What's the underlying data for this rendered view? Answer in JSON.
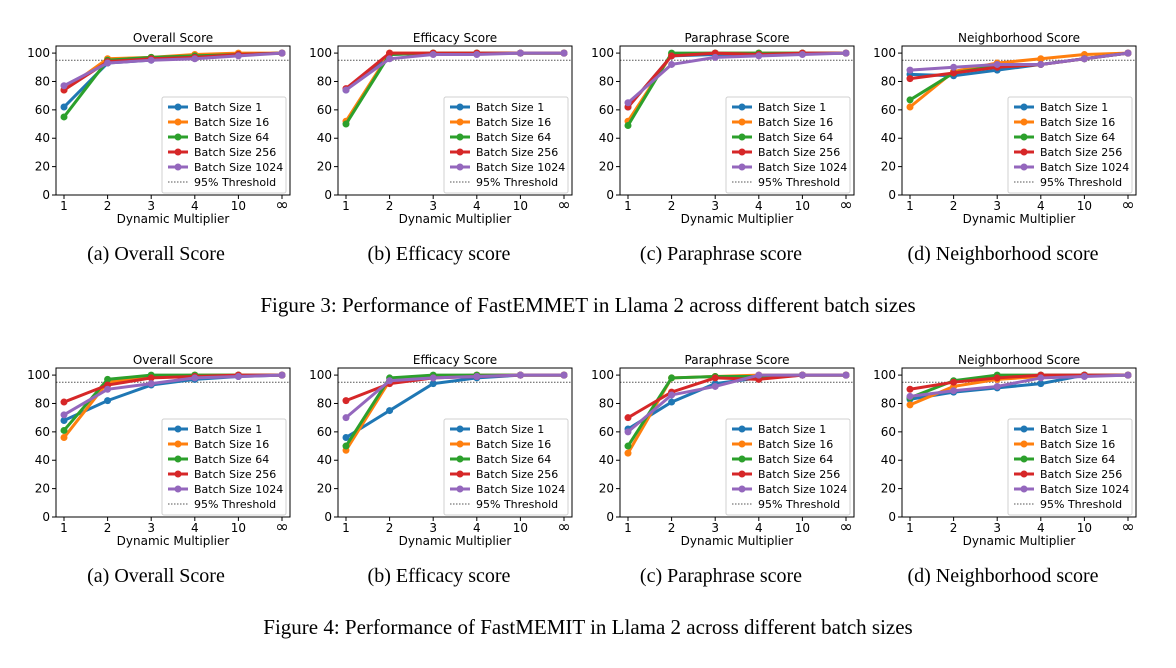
{
  "figures": [
    {
      "caption": "Figure 3: Performance of FastEMMET in Llama 2 across different batch sizes",
      "subcaptions": [
        "(a) Overall Score",
        "(b) Efficacy score",
        "(c) Paraphrase score",
        "(d) Neighborhood score"
      ]
    },
    {
      "caption": "Figure 4: Performance of FastMEMIT in Llama 2 across different batch sizes",
      "subcaptions": [
        "(a) Overall Score",
        "(b) Efficacy score",
        "(c) Paraphrase score",
        "(d) Neighborhood score"
      ]
    }
  ],
  "colors": {
    "Batch Size 1": "#1f77b4",
    "Batch Size 16": "#ff7f0e",
    "Batch Size 64": "#2ca02c",
    "Batch Size 256": "#d62728",
    "Batch Size 1024": "#9467bd",
    "95% Threshold": "#555555"
  },
  "chart_data": [
    {
      "type": "line",
      "title": "Overall Score",
      "xlabel": "Dynamic Multiplier",
      "ylabel": "",
      "categories": [
        "1",
        "2",
        "3",
        "4",
        "10",
        "∞"
      ],
      "ylim": [
        0,
        105
      ],
      "yticks": [
        0,
        20,
        40,
        60,
        80,
        100
      ],
      "threshold": 95,
      "threshold_label": "95% Threshold",
      "legend": "lower-right",
      "grid": false,
      "series": [
        {
          "name": "Batch Size 1",
          "values": [
            62,
            93,
            95,
            97,
            99,
            100
          ]
        },
        {
          "name": "Batch Size 16",
          "values": [
            74,
            96,
            97,
            99,
            100,
            100
          ]
        },
        {
          "name": "Batch Size 64",
          "values": [
            55,
            95,
            97,
            98,
            99,
            100
          ]
        },
        {
          "name": "Batch Size 256",
          "values": [
            74,
            94,
            96,
            97,
            99,
            100
          ]
        },
        {
          "name": "Batch Size 1024",
          "values": [
            77,
            93,
            95,
            96,
            98,
            100
          ]
        }
      ]
    },
    {
      "type": "line",
      "title": "Efficacy Score",
      "xlabel": "Dynamic Multiplier",
      "ylabel": "",
      "categories": [
        "1",
        "2",
        "3",
        "4",
        "10",
        "∞"
      ],
      "ylim": [
        0,
        105
      ],
      "yticks": [
        0,
        20,
        40,
        60,
        80,
        100
      ],
      "threshold": 95,
      "threshold_label": "95% Threshold",
      "legend": "lower-right",
      "grid": false,
      "series": [
        {
          "name": "Batch Size 1",
          "values": [
            74,
            99,
            100,
            100,
            100,
            100
          ]
        },
        {
          "name": "Batch Size 16",
          "values": [
            52,
            100,
            100,
            100,
            100,
            100
          ]
        },
        {
          "name": "Batch Size 64",
          "values": [
            50,
            99,
            100,
            100,
            100,
            100
          ]
        },
        {
          "name": "Batch Size 256",
          "values": [
            75,
            100,
            100,
            100,
            100,
            100
          ]
        },
        {
          "name": "Batch Size 1024",
          "values": [
            74,
            96,
            99,
            99,
            100,
            100
          ]
        }
      ]
    },
    {
      "type": "line",
      "title": "Paraphrase Score",
      "xlabel": "Dynamic Multiplier",
      "ylabel": "",
      "categories": [
        "1",
        "2",
        "3",
        "4",
        "10",
        "∞"
      ],
      "ylim": [
        0,
        105
      ],
      "yticks": [
        0,
        20,
        40,
        60,
        80,
        100
      ],
      "threshold": 95,
      "threshold_label": "95% Threshold",
      "legend": "lower-right",
      "grid": false,
      "series": [
        {
          "name": "Batch Size 1",
          "values": [
            62,
            98,
            99,
            99,
            100,
            100
          ]
        },
        {
          "name": "Batch Size 16",
          "values": [
            52,
            99,
            100,
            100,
            100,
            100
          ]
        },
        {
          "name": "Batch Size 64",
          "values": [
            49,
            100,
            100,
            100,
            100,
            100
          ]
        },
        {
          "name": "Batch Size 256",
          "values": [
            62,
            98,
            100,
            99,
            100,
            100
          ]
        },
        {
          "name": "Batch Size 1024",
          "values": [
            65,
            92,
            97,
            98,
            99,
            100
          ]
        }
      ]
    },
    {
      "type": "line",
      "title": "Neighborhood Score",
      "xlabel": "Dynamic Multiplier",
      "ylabel": "",
      "categories": [
        "1",
        "2",
        "3",
        "4",
        "10",
        "∞"
      ],
      "ylim": [
        0,
        105
      ],
      "yticks": [
        0,
        20,
        40,
        60,
        80,
        100
      ],
      "threshold": 95,
      "threshold_label": "95% Threshold",
      "legend": "lower-right",
      "grid": false,
      "series": [
        {
          "name": "Batch Size 1",
          "values": [
            85,
            84,
            88,
            92,
            96,
            100
          ]
        },
        {
          "name": "Batch Size 16",
          "values": [
            62,
            87,
            93,
            96,
            99,
            100
          ]
        },
        {
          "name": "Batch Size 64",
          "values": [
            67,
            86,
            91,
            92,
            96,
            100
          ]
        },
        {
          "name": "Batch Size 256",
          "values": [
            82,
            86,
            90,
            92,
            96,
            100
          ]
        },
        {
          "name": "Batch Size 1024",
          "values": [
            88,
            90,
            92,
            92,
            96,
            100
          ]
        }
      ]
    },
    {
      "type": "line",
      "title": "Overall Score",
      "xlabel": "Dynamic Multiplier",
      "ylabel": "",
      "categories": [
        "1",
        "2",
        "3",
        "4",
        "10",
        "∞"
      ],
      "ylim": [
        0,
        105
      ],
      "yticks": [
        0,
        20,
        40,
        60,
        80,
        100
      ],
      "threshold": 95,
      "threshold_label": "95% Threshold",
      "legend": "lower-right",
      "grid": false,
      "series": [
        {
          "name": "Batch Size 1",
          "values": [
            68,
            82,
            93,
            97,
            99,
            100
          ]
        },
        {
          "name": "Batch Size 16",
          "values": [
            56,
            95,
            99,
            100,
            100,
            100
          ]
        },
        {
          "name": "Batch Size 64",
          "values": [
            61,
            97,
            100,
            100,
            100,
            100
          ]
        },
        {
          "name": "Batch Size 256",
          "values": [
            81,
            93,
            98,
            99,
            100,
            100
          ]
        },
        {
          "name": "Batch Size 1024",
          "values": [
            72,
            90,
            94,
            98,
            99,
            100
          ]
        }
      ]
    },
    {
      "type": "line",
      "title": "Efficacy Score",
      "xlabel": "Dynamic Multiplier",
      "ylabel": "",
      "categories": [
        "1",
        "2",
        "3",
        "4",
        "10",
        "∞"
      ],
      "ylim": [
        0,
        105
      ],
      "yticks": [
        0,
        20,
        40,
        60,
        80,
        100
      ],
      "threshold": 95,
      "threshold_label": "95% Threshold",
      "legend": "lower-right",
      "grid": false,
      "series": [
        {
          "name": "Batch Size 1",
          "values": [
            56,
            75,
            94,
            98,
            100,
            100
          ]
        },
        {
          "name": "Batch Size 16",
          "values": [
            47,
            96,
            99,
            100,
            100,
            100
          ]
        },
        {
          "name": "Batch Size 64",
          "values": [
            50,
            98,
            100,
            100,
            100,
            100
          ]
        },
        {
          "name": "Batch Size 256",
          "values": [
            82,
            94,
            98,
            99,
            100,
            100
          ]
        },
        {
          "name": "Batch Size 1024",
          "values": [
            70,
            96,
            98,
            99,
            100,
            100
          ]
        }
      ]
    },
    {
      "type": "line",
      "title": "Paraphrase Score",
      "xlabel": "Dynamic Multiplier",
      "ylabel": "",
      "categories": [
        "1",
        "2",
        "3",
        "4",
        "10",
        "∞"
      ],
      "ylim": [
        0,
        105
      ],
      "yticks": [
        0,
        20,
        40,
        60,
        80,
        100
      ],
      "threshold": 95,
      "threshold_label": "95% Threshold",
      "legend": "lower-right",
      "grid": false,
      "series": [
        {
          "name": "Batch Size 1",
          "values": [
            62,
            81,
            94,
            98,
            100,
            100
          ]
        },
        {
          "name": "Batch Size 16",
          "values": [
            45,
            98,
            99,
            100,
            100,
            100
          ]
        },
        {
          "name": "Batch Size 64",
          "values": [
            50,
            98,
            99,
            99,
            100,
            100
          ]
        },
        {
          "name": "Batch Size 256",
          "values": [
            70,
            88,
            98,
            97,
            100,
            100
          ]
        },
        {
          "name": "Batch Size 1024",
          "values": [
            60,
            86,
            92,
            100,
            100,
            100
          ]
        }
      ]
    },
    {
      "type": "line",
      "title": "Neighborhood Score",
      "xlabel": "Dynamic Multiplier",
      "ylabel": "",
      "categories": [
        "1",
        "2",
        "3",
        "4",
        "10",
        "∞"
      ],
      "ylim": [
        0,
        105
      ],
      "yticks": [
        0,
        20,
        40,
        60,
        80,
        100
      ],
      "threshold": 95,
      "threshold_label": "95% Threshold",
      "legend": "lower-right",
      "grid": false,
      "series": [
        {
          "name": "Batch Size 1",
          "values": [
            83,
            88,
            91,
            94,
            100,
            100
          ]
        },
        {
          "name": "Batch Size 16",
          "values": [
            79,
            92,
            97,
            99,
            100,
            100
          ]
        },
        {
          "name": "Batch Size 64",
          "values": [
            84,
            96,
            100,
            100,
            100,
            100
          ]
        },
        {
          "name": "Batch Size 256",
          "values": [
            90,
            95,
            98,
            100,
            100,
            100
          ]
        },
        {
          "name": "Batch Size 1024",
          "values": [
            85,
            89,
            92,
            98,
            99,
            100
          ]
        }
      ]
    }
  ]
}
